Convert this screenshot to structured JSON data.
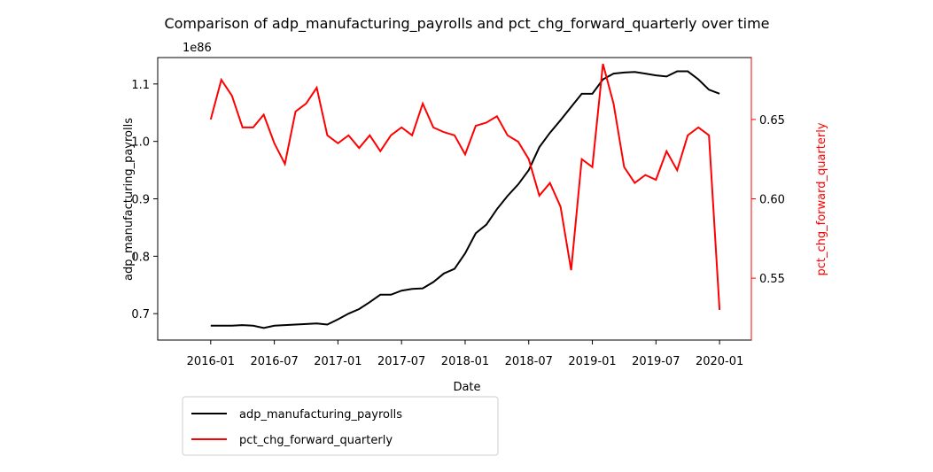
{
  "chart_data": {
    "type": "line",
    "title": "Comparison of adp_manufacturing_payrolls and pct_chg_forward_quarterly over time",
    "x_label": "Date",
    "y_label": "adp_manufacturing_payrolls",
    "y2_label": "pct_chg_forward_quarterly",
    "y_offset_label": "1e86",
    "x": [
      "2016-01",
      "2016-02",
      "2016-03",
      "2016-04",
      "2016-05",
      "2016-06",
      "2016-07",
      "2016-08",
      "2016-09",
      "2016-10",
      "2016-11",
      "2016-12",
      "2017-01",
      "2017-02",
      "2017-03",
      "2017-04",
      "2017-05",
      "2017-06",
      "2017-07",
      "2017-08",
      "2017-09",
      "2017-10",
      "2017-11",
      "2017-12",
      "2018-01",
      "2018-02",
      "2018-03",
      "2018-04",
      "2018-05",
      "2018-06",
      "2018-07",
      "2018-08",
      "2018-09",
      "2018-10",
      "2018-11",
      "2018-12",
      "2019-01",
      "2019-02",
      "2019-03",
      "2019-04",
      "2019-05",
      "2019-06",
      "2019-07",
      "2019-08",
      "2019-09",
      "2019-10",
      "2019-11",
      "2019-12",
      "2020-01"
    ],
    "xlim": [
      "2015-08",
      "2020-04"
    ],
    "xticks": [
      "2016-01",
      "2016-07",
      "2017-01",
      "2017-07",
      "2018-01",
      "2018-07",
      "2019-01",
      "2019-07",
      "2020-01"
    ],
    "ylim": [
      0.654,
      1.146
    ],
    "yticks": [
      0.7,
      0.8,
      0.9,
      {
        "value": 1,
        "label": "1.0"
      },
      1.1
    ],
    "y2lim": [
      0.511,
      0.689
    ],
    "y2ticks": [
      0.55,
      {
        "value": 0.6,
        "label": "0.60"
      },
      0.65
    ],
    "y2_color": "#ff0000",
    "legend": "lower left outside",
    "series": [
      {
        "name": "adp_manufacturing_payrolls",
        "color": "#000000",
        "axis": "y",
        "values": [
          0.679,
          0.679,
          0.679,
          0.68,
          0.679,
          0.675,
          0.679,
          0.68,
          0.681,
          0.682,
          0.683,
          0.681,
          0.69,
          0.7,
          0.708,
          0.72,
          0.733,
          0.733,
          0.74,
          0.743,
          0.744,
          0.755,
          0.77,
          0.778,
          0.805,
          0.84,
          0.855,
          0.882,
          0.905,
          0.925,
          0.95,
          0.99,
          1.015,
          1.037,
          1.06,
          1.083,
          1.083,
          1.108,
          1.118,
          1.12,
          1.121,
          1.118,
          1.115,
          1.113,
          1.122,
          1.122,
          1.108,
          1.09,
          1.083
        ]
      },
      {
        "name": "pct_chg_forward_quarterly",
        "color": "#ff0000",
        "axis": "y2",
        "values": [
          0.65,
          0.675,
          0.665,
          0.645,
          0.645,
          0.653,
          0.635,
          0.622,
          0.655,
          0.66,
          0.67,
          0.64,
          0.635,
          0.64,
          0.632,
          0.64,
          0.63,
          0.64,
          0.645,
          0.64,
          0.66,
          0.645,
          0.642,
          0.64,
          0.628,
          0.646,
          0.648,
          0.652,
          0.64,
          0.636,
          0.625,
          0.602,
          0.61,
          0.595,
          0.555,
          0.625,
          0.62,
          0.685,
          0.66,
          0.62,
          0.61,
          0.615,
          0.612,
          0.63,
          0.618,
          0.64,
          0.645,
          0.64,
          0.53
        ]
      }
    ]
  }
}
